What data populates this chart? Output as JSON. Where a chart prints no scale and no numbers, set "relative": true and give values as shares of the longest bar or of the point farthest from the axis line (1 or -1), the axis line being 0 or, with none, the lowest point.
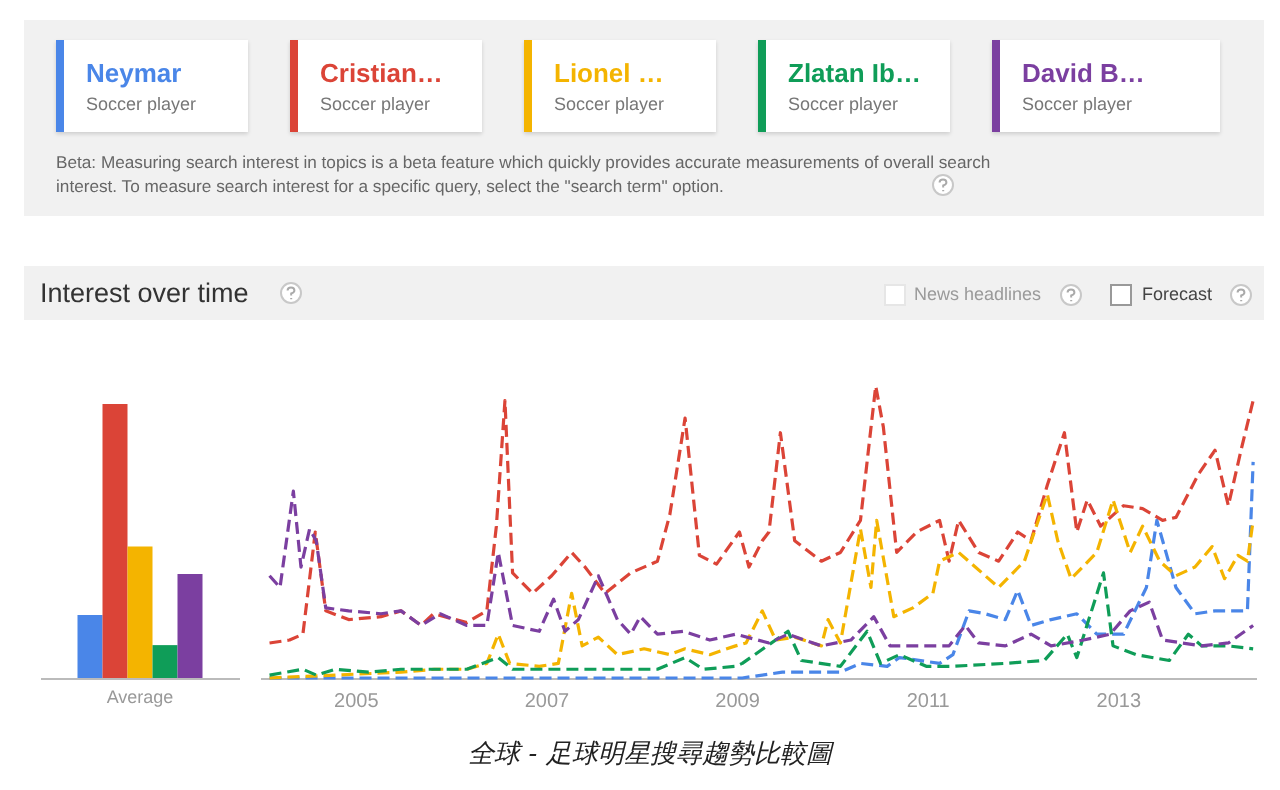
{
  "chart_data": [
    {
      "type": "bar",
      "title": "Interest over time",
      "categories": [
        "Average"
      ],
      "relative": true,
      "series": [
        {
          "color": "#4a86e8",
          "values": [
            0.23
          ]
        },
        {
          "color": "#db4437",
          "values": [
            1
          ]
        },
        {
          "color": "#f4b400",
          "values": [
            0.48
          ]
        },
        {
          "color": "#0f9d58",
          "values": [
            0.12
          ]
        },
        {
          "color": "#7b3fa0",
          "values": [
            0.38
          ]
        }
      ]
    },
    {
      "type": "line",
      "relative": true,
      "legend": "top",
      "line_style": "dashed",
      "xlim": [
        2004,
        2014.45
      ],
      "xticks": [
        2005,
        2007,
        2009,
        2011,
        2013
      ],
      "annotations": [
        "Soccer player",
        "Soccer player",
        "Soccer player",
        "Soccer player",
        "Soccer player",
        "Beta: Measuring search interest in topics is a beta feature which quickly provides accurate measurements of overall search interest. To measure search interest for a specific query, select the \"search term\" option.",
        "News headlines",
        "Forecast",
        "全球 - 足球明星搜尋趨勢比較圖"
      ],
      "series": [
        {
          "name": "Neymar",
          "color": "#4a86e8",
          "x": [
            2004.1,
            2009.06,
            2009.48,
            2010.09,
            2010.3,
            2010.58,
            2010.71,
            2011.13,
            2011.27,
            2011.44,
            2011.61,
            2011.82,
            2011.95,
            2012.09,
            2012.3,
            2012.57,
            2012.78,
            2013.06,
            2013.3,
            2013.41,
            2013.61,
            2013.81,
            2014.02,
            2014.23,
            2014.36,
            2014.42
          ],
          "values": [
            0,
            0,
            0.02,
            0.02,
            0.05,
            0.04,
            0.07,
            0.05,
            0.08,
            0.23,
            0.22,
            0.2,
            0.3,
            0.18,
            0.2,
            0.22,
            0.15,
            0.15,
            0.31,
            0.54,
            0.31,
            0.22,
            0.23,
            0.23,
            0.23,
            0.74
          ]
        },
        {
          "name": "Cristian…",
          "color": "#db4437",
          "x": [
            2004.1,
            2004.31,
            2004.45,
            2004.58,
            2004.69,
            2004.93,
            2005.27,
            2005.48,
            2005.69,
            2005.82,
            2006.17,
            2006.38,
            2006.48,
            2006.57,
            2006.65,
            2006.86,
            2007.06,
            2007.27,
            2007.41,
            2007.62,
            2007.89,
            2008.17,
            2008.3,
            2008.46,
            2008.61,
            2008.79,
            2009.03,
            2009.13,
            2009.27,
            2009.34,
            2009.46,
            2009.61,
            2009.89,
            2010.09,
            2010.3,
            2010.46,
            2010.54,
            2010.68,
            2010.89,
            2011.13,
            2011.23,
            2011.33,
            2011.54,
            2011.75,
            2011.95,
            2012.09,
            2012.26,
            2012.44,
            2012.57,
            2012.68,
            2012.82,
            2013.06,
            2013.26,
            2013.47,
            2013.61,
            2013.85,
            2014.02,
            2014.16,
            2014.3,
            2014.42
          ],
          "values": [
            0.12,
            0.13,
            0.15,
            0.5,
            0.23,
            0.2,
            0.21,
            0.23,
            0.18,
            0.22,
            0.19,
            0.23,
            0.52,
            0.95,
            0.36,
            0.29,
            0.35,
            0.43,
            0.38,
            0.29,
            0.36,
            0.4,
            0.56,
            0.89,
            0.42,
            0.39,
            0.5,
            0.38,
            0.47,
            0.5,
            0.84,
            0.47,
            0.4,
            0.43,
            0.54,
            1,
            0.86,
            0.43,
            0.5,
            0.54,
            0.4,
            0.54,
            0.43,
            0.4,
            0.5,
            0.47,
            0.66,
            0.84,
            0.5,
            0.61,
            0.52,
            0.59,
            0.58,
            0.54,
            0.55,
            0.7,
            0.78,
            0.59,
            0.79,
            0.95
          ]
        },
        {
          "name": "Lionel …",
          "color": "#f4b400",
          "x": [
            2004.1,
            2005.48,
            2005.83,
            2006.17,
            2006.38,
            2006.5,
            2006.62,
            2006.93,
            2007.13,
            2007.27,
            2007.38,
            2007.55,
            2007.75,
            2008.03,
            2008.3,
            2008.46,
            2008.72,
            2008.99,
            2009.1,
            2009.27,
            2009.41,
            2009.61,
            2009.89,
            2009.96,
            2010.09,
            2010.3,
            2010.41,
            2010.47,
            2010.65,
            2010.85,
            2011.06,
            2011.13,
            2011.33,
            2011.75,
            2012.02,
            2012.26,
            2012.37,
            2012.51,
            2012.78,
            2012.95,
            2013.13,
            2013.26,
            2013.44,
            2013.61,
            2013.81,
            2013.99,
            2014.12,
            2014.26,
            2014.36,
            2014.42
          ],
          "values": [
            0,
            0.02,
            0.03,
            0.03,
            0.05,
            0.15,
            0.05,
            0.04,
            0.05,
            0.29,
            0.11,
            0.14,
            0.08,
            0.1,
            0.08,
            0.1,
            0.08,
            0.11,
            0.12,
            0.23,
            0.13,
            0.14,
            0.11,
            0.2,
            0.12,
            0.51,
            0.31,
            0.54,
            0.21,
            0.24,
            0.29,
            0.4,
            0.43,
            0.31,
            0.4,
            0.63,
            0.47,
            0.34,
            0.43,
            0.61,
            0.43,
            0.52,
            0.4,
            0.35,
            0.38,
            0.45,
            0.34,
            0.42,
            0.4,
            0.54
          ]
        },
        {
          "name": "Zlatan Ib…",
          "color": "#0f9d58",
          "x": [
            2004.1,
            2004.45,
            2004.59,
            2004.79,
            2005.14,
            2005.48,
            2005.83,
            2006.17,
            2006.5,
            2006.65,
            2007.27,
            2007.75,
            2008.17,
            2008.46,
            2008.65,
            2008.99,
            2009.06,
            2009.54,
            2009.68,
            2010.09,
            2010.37,
            2010.51,
            2010.71,
            2010.99,
            2011.27,
            2011.82,
            2012.23,
            2012.47,
            2012.57,
            2012.85,
            2012.95,
            2013.19,
            2013.54,
            2013.74,
            2013.88,
            2014.16,
            2014.42
          ],
          "values": [
            0.01,
            0.03,
            0.01,
            0.03,
            0.02,
            0.03,
            0.03,
            0.03,
            0.07,
            0.03,
            0.03,
            0.03,
            0.03,
            0.07,
            0.03,
            0.04,
            0.05,
            0.16,
            0.06,
            0.04,
            0.16,
            0.05,
            0.08,
            0.04,
            0.04,
            0.05,
            0.06,
            0.15,
            0.07,
            0.36,
            0.11,
            0.08,
            0.06,
            0.15,
            0.11,
            0.11,
            0.1
          ]
        },
        {
          "name": "David B…",
          "color": "#7b3fa0",
          "x": [
            2004.1,
            2004.21,
            2004.35,
            2004.43,
            2004.52,
            2004.59,
            2004.69,
            2004.93,
            2005.27,
            2005.48,
            2005.69,
            2005.89,
            2006.17,
            2006.38,
            2006.5,
            2006.65,
            2006.93,
            2007.08,
            2007.2,
            2007.34,
            2007.55,
            2007.75,
            2007.89,
            2007.99,
            2008.17,
            2008.44,
            2008.72,
            2008.99,
            2009.34,
            2009.54,
            2009.89,
            2010.2,
            2010.44,
            2010.61,
            2010.99,
            2011.23,
            2011.4,
            2011.54,
            2011.82,
            2012.09,
            2012.3,
            2012.64,
            2012.92,
            2013.13,
            2013.33,
            2013.47,
            2013.88,
            2014.16,
            2014.42
          ],
          "values": [
            0.35,
            0.31,
            0.64,
            0.38,
            0.51,
            0.47,
            0.24,
            0.23,
            0.22,
            0.23,
            0.18,
            0.22,
            0.18,
            0.18,
            0.43,
            0.18,
            0.16,
            0.27,
            0.16,
            0.2,
            0.35,
            0.2,
            0.15,
            0.21,
            0.15,
            0.16,
            0.13,
            0.15,
            0.12,
            0.15,
            0.11,
            0.13,
            0.21,
            0.11,
            0.11,
            0.11,
            0.18,
            0.12,
            0.11,
            0.15,
            0.11,
            0.13,
            0.15,
            0.23,
            0.26,
            0.13,
            0.11,
            0.12,
            0.18
          ]
        }
      ]
    }
  ]
}
